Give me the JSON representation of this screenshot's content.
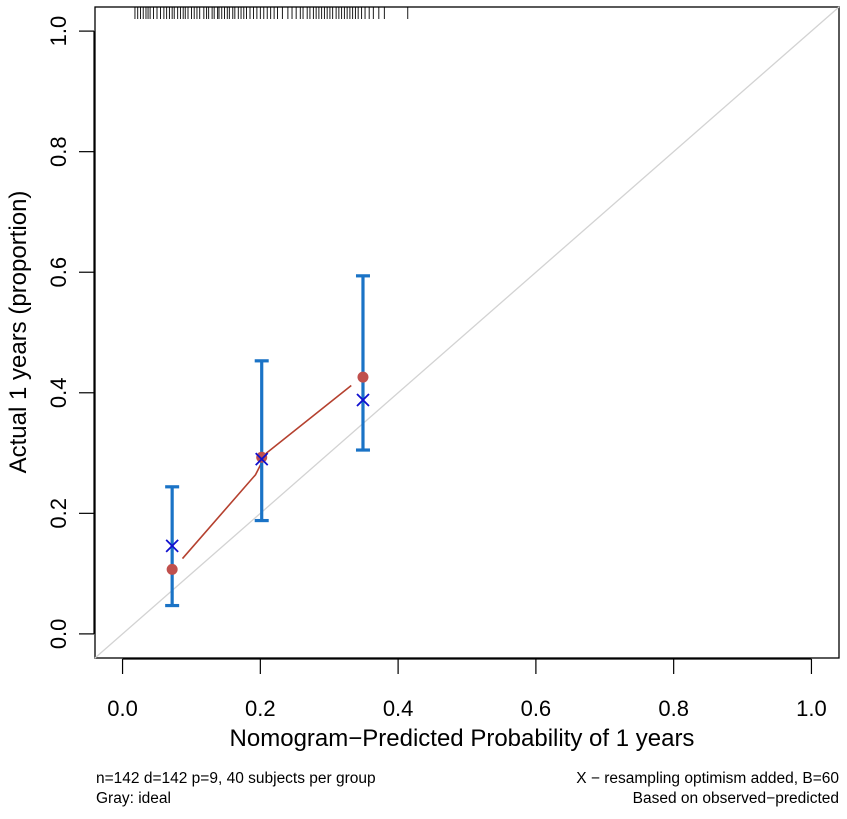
{
  "chart_data": {
    "type": "calibration",
    "xlabel": "Nomogram−Predicted Probability of 1 years",
    "ylabel": "Actual 1 years (proportion)",
    "xlim": [
      -0.04,
      1.04
    ],
    "ylim": [
      -0.04,
      1.04
    ],
    "x_ticks": [
      "0.0",
      "0.2",
      "0.4",
      "0.6",
      "0.8",
      "1.0"
    ],
    "y_ticks": [
      "0.0",
      "0.2",
      "0.4",
      "0.6",
      "0.8",
      "1.0"
    ],
    "ideal_line": {
      "name": "ideal",
      "color": "#d3d3d3",
      "points": [
        [
          -0.04,
          -0.04
        ],
        [
          1.04,
          1.04
        ]
      ]
    },
    "observed_line": {
      "name": "observed-predicted",
      "color": "#b5412f",
      "points": [
        [
          0.087,
          0.125
        ],
        [
          0.193,
          0.264
        ],
        [
          0.209,
          0.3
        ],
        [
          0.332,
          0.412
        ]
      ]
    },
    "groups": [
      {
        "predicted": 0.072,
        "observed": 0.107,
        "corrected": 0.146,
        "ci_low": 0.047,
        "ci_high": 0.244
      },
      {
        "predicted": 0.202,
        "observed": 0.293,
        "corrected": 0.29,
        "ci_low": 0.188,
        "ci_high": 0.453
      },
      {
        "predicted": 0.349,
        "observed": 0.426,
        "corrected": 0.388,
        "ci_low": 0.305,
        "ci_high": 0.594
      }
    ],
    "rug": [
      0.018,
      0.022,
      0.026,
      0.03,
      0.034,
      0.037,
      0.04,
      0.045,
      0.05,
      0.055,
      0.06,
      0.064,
      0.068,
      0.072,
      0.075,
      0.08,
      0.084,
      0.088,
      0.091,
      0.095,
      0.1,
      0.104,
      0.108,
      0.112,
      0.118,
      0.122,
      0.125,
      0.13,
      0.133,
      0.138,
      0.14,
      0.144,
      0.148,
      0.152,
      0.155,
      0.16,
      0.163,
      0.168,
      0.172,
      0.176,
      0.18,
      0.185,
      0.19,
      0.195,
      0.2,
      0.205,
      0.21,
      0.215,
      0.22,
      0.225,
      0.232,
      0.24,
      0.246,
      0.252,
      0.258,
      0.262,
      0.268,
      0.272,
      0.277,
      0.281,
      0.285,
      0.289,
      0.293,
      0.297,
      0.301,
      0.305,
      0.31,
      0.314,
      0.318,
      0.322,
      0.326,
      0.33,
      0.334,
      0.338,
      0.342,
      0.347,
      0.352,
      0.358,
      0.364,
      0.372,
      0.38,
      0.414
    ],
    "colors": {
      "ci": "#1a73c6",
      "corrected": "#1010d0",
      "observed_point": "#c0504d",
      "frame": "#000000"
    }
  },
  "footnotes": {
    "left_line1": "n=142 d=142 p=9, 40 subjects per group",
    "left_line2": "Gray: ideal",
    "right_line1": "X − resampling optimism added, B=60",
    "right_line2": "Based on observed−predicted"
  }
}
